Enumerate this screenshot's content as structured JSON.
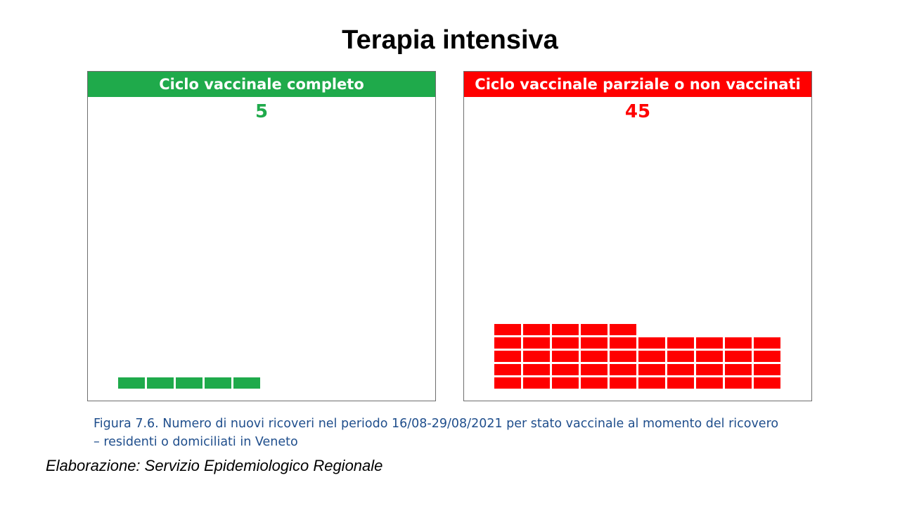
{
  "title": "Terapia intensiva",
  "chart_data": [
    {
      "type": "waffle",
      "title": "Ciclo vaccinale completo",
      "value": 5,
      "value_label": "5",
      "color": "#1faa4b",
      "header_color": "#1faa4b",
      "units_per_row": 10
    },
    {
      "type": "waffle",
      "title": "Ciclo vaccinale parziale o non vaccinati",
      "value": 45,
      "value_label": "45",
      "color": "#ff0000",
      "header_color": "#ff0000",
      "units_per_row": 10
    }
  ],
  "caption": {
    "line1": "Figura 7.6. Numero di nuovi ricoveri nel periodo 16/08-29/08/2021 per stato vaccinale al momento del ricovero",
    "line2": "– residenti o domiciliati in Veneto"
  },
  "source": "Elaborazione: Servizio Epidemiologico Regionale"
}
